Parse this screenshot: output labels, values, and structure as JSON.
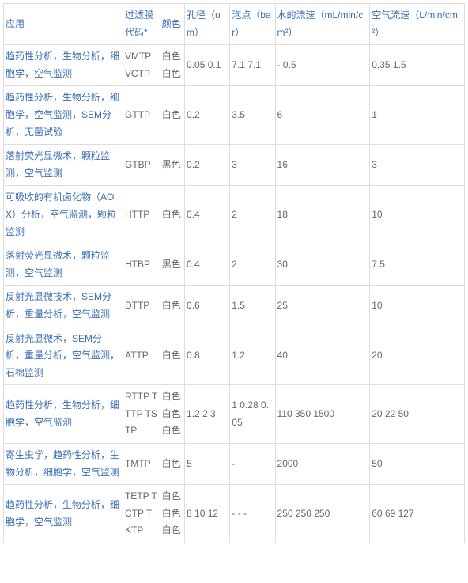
{
  "headers": {
    "application": "应用",
    "filter_code": "过滤膜代码*",
    "color": "颜色",
    "pore_size": "孔径（um）",
    "bubble_point": "泡点（bar）",
    "water_flow": "水的流速（mL/min/cm²）",
    "air_flow": "空气流速（L/min/cm²）"
  },
  "rows": [
    {
      "application": "趋药性分析，生物分析，细胞学，空气监测",
      "filter_code": "VMTP VCTP",
      "color": "白色 白色",
      "pore_size": "0.05 0.1",
      "bubble_point": "7.1 7.1",
      "water_flow": "- 0.5",
      "air_flow": "0.35 1.5"
    },
    {
      "application": "趋药性分析，生物分析，细胞学，空气监测，SEM分析，无菌试验",
      "filter_code": "GTTP",
      "color": "白色",
      "pore_size": "0.2",
      "bubble_point": "3.5",
      "water_flow": "6",
      "air_flow": "1"
    },
    {
      "application": "落射荧光显微术，颗粒监测，空气监测",
      "filter_code": "GTBP",
      "color": "黑色",
      "pore_size": "0.2",
      "bubble_point": "3",
      "water_flow": "16",
      "air_flow": "3"
    },
    {
      "application": "可吸收的有机卤化物（AOX）分析，空气监测，颗粒监测",
      "filter_code": "HTTP",
      "color": "白色",
      "pore_size": "0.4",
      "bubble_point": "2",
      "water_flow": "18",
      "air_flow": "10"
    },
    {
      "application": "落射荧光显微术，颗粒监测，空气监测",
      "filter_code": "HTBP",
      "color": "黑色",
      "pore_size": "0.4",
      "bubble_point": "2",
      "water_flow": "30",
      "air_flow": "7.5"
    },
    {
      "application": "反射光显微技术，SEM分析，重量分析，空气监测",
      "filter_code": "DTTP",
      "color": "白色",
      "pore_size": "0.6",
      "bubble_point": "1.5",
      "water_flow": "25",
      "air_flow": "10"
    },
    {
      "application": "反射光显微术，SEM分析，重量分析，空气监测，石棉监测",
      "filter_code": "ATTP",
      "color": "白色",
      "pore_size": "0.8",
      "bubble_point": "1.2",
      "water_flow": "40",
      "air_flow": "20"
    },
    {
      "application": "趋药性分析，生物分析，细胞学，空气监测",
      "filter_code": "RTTP TTTP TSTP",
      "color": "白色 白色 白色",
      "pore_size": "1.2 2 3",
      "bubble_point": "1 0.28 0.05",
      "water_flow": "110 350 1500",
      "air_flow": "20 22 50"
    },
    {
      "application": "寄生虫学，趋药性分析，生物分析，细胞学，空气监测",
      "filter_code": "TMTP",
      "color": "白色",
      "pore_size": "5",
      "bubble_point": "-",
      "water_flow": "2000",
      "air_flow": "50"
    },
    {
      "application": "趋药性分析，生物分析，细胞学，空气监测",
      "filter_code": "TETP TCTP TKTP",
      "color": "白色 白色 白色",
      "pore_size": "8 10 12",
      "bubble_point": "- - -",
      "water_flow": "250 250 250",
      "air_flow": "60 69 127"
    }
  ],
  "styling": {
    "link_color": "#3a6db5",
    "text_color": "#666666",
    "border_color": "#dddddd",
    "background_color": "#ffffff",
    "font_size": 12,
    "line_height": 1.8
  }
}
